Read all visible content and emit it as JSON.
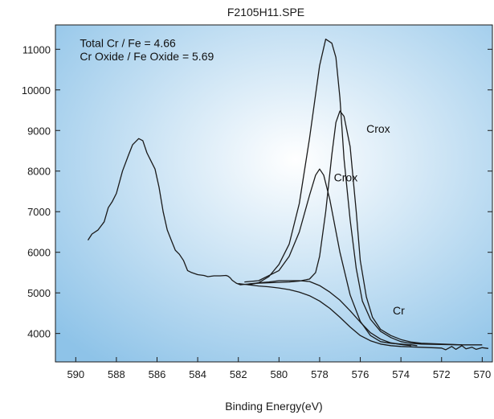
{
  "chart_data": {
    "type": "line",
    "title": "F2105H11.SPE",
    "xlabel": "Binding Energy(eV)",
    "ylabel": "",
    "x_reversed": true,
    "xlim": [
      591,
      569.5
    ],
    "ylim": [
      3300,
      11600
    ],
    "x_ticks": [
      590,
      588,
      586,
      584,
      582,
      580,
      578,
      576,
      574,
      572,
      570
    ],
    "y_ticks": [
      4000,
      5000,
      6000,
      7000,
      8000,
      9000,
      10000,
      11000
    ],
    "background": {
      "gradient": "radial",
      "center_color": "#ffffff",
      "edge_color": "#8ec3e8"
    },
    "annotations": [
      {
        "text": "Total Cr / Fe = 4.66",
        "x": 589.8,
        "y": 11060,
        "anchor": "start"
      },
      {
        "text": "Cr Oxide / Fe Oxide = 5.69",
        "x": 589.8,
        "y": 10730,
        "anchor": "start"
      },
      {
        "text": "Crox",
        "x": 575.7,
        "y": 8950,
        "anchor": "start"
      },
      {
        "text": "Crox",
        "x": 577.3,
        "y": 7750,
        "anchor": "start"
      },
      {
        "text": "Cr",
        "x": 574.4,
        "y": 4470,
        "anchor": "start"
      }
    ],
    "series": [
      {
        "x": [
          589.4,
          589.2,
          588.9,
          588.6,
          588.4,
          588.2,
          588.0,
          587.7,
          587.4,
          587.2,
          586.9,
          586.7,
          586.5,
          586.3,
          586.1,
          585.9,
          585.7,
          585.5,
          585.3,
          585.1,
          584.9,
          584.7,
          584.5,
          584.3,
          584.0,
          583.7,
          583.5,
          583.2,
          582.9,
          582.6,
          582.5,
          582.4,
          582.3,
          582.1,
          581.9,
          581.5,
          581.0,
          580.5,
          580.0,
          579.5,
          579.0,
          578.5,
          578.0,
          577.5,
          577.0,
          576.5,
          576.0,
          575.5,
          575.0,
          574.5,
          574.0,
          573.5
        ],
        "values": [
          6300,
          6450,
          6550,
          6750,
          7100,
          7250,
          7450,
          8000,
          8400,
          8650,
          8800,
          8750,
          8450,
          8250,
          8050,
          7600,
          7000,
          6550,
          6300,
          6050,
          5950,
          5800,
          5550,
          5500,
          5450,
          5430,
          5400,
          5420,
          5420,
          5430,
          5410,
          5370,
          5310,
          5240,
          5200,
          5220,
          5250,
          5270,
          5300,
          5300,
          5300,
          5280,
          5180,
          5020,
          4820,
          4560,
          4280,
          4020,
          3860,
          3770,
          3730,
          3700
        ]
      },
      {
        "x": [
          581.5,
          581.0,
          580.5,
          580.0,
          579.5,
          579.0,
          578.5,
          578.0,
          577.7,
          577.4,
          577.2,
          577.0,
          576.8,
          576.5,
          576.2,
          575.9,
          575.5,
          575.0,
          574.5,
          574.0,
          573.5,
          573.0,
          572.0,
          571.0,
          570.0
        ],
        "values": [
          5200,
          5250,
          5400,
          5700,
          6200,
          7200,
          8800,
          10600,
          11250,
          11150,
          10800,
          9800,
          8300,
          6800,
          5600,
          4800,
          4350,
          4050,
          3900,
          3800,
          3760,
          3740,
          3730,
          3720,
          3720
        ]
      },
      {
        "x": [
          581.7,
          581.0,
          580.0,
          579.5,
          579.0,
          578.5,
          578.2,
          578.0,
          577.8,
          577.5,
          577.0,
          576.5,
          576.0,
          575.5,
          575.0,
          574.5,
          574.0,
          573.5,
          573.2
        ],
        "values": [
          5270,
          5300,
          5550,
          5900,
          6500,
          7400,
          7900,
          8050,
          7900,
          7300,
          6000,
          4950,
          4300,
          3950,
          3800,
          3760,
          3740,
          3720,
          3700
        ]
      },
      {
        "x": [
          581.5,
          581.0,
          580.0,
          579.5,
          579.0,
          578.5,
          578.2,
          578.0,
          577.7,
          577.4,
          577.2,
          577.0,
          576.8,
          576.5,
          576.2,
          576.0,
          575.7,
          575.4,
          575.0,
          574.5,
          574.0,
          573.5,
          573.0,
          572.0,
          571.0
        ],
        "values": [
          5220,
          5240,
          5260,
          5270,
          5290,
          5340,
          5500,
          5900,
          7000,
          8400,
          9200,
          9480,
          9350,
          8600,
          7000,
          5800,
          4900,
          4400,
          4100,
          3950,
          3850,
          3790,
          3760,
          3740,
          3720
        ]
      },
      {
        "x": [
          582.0,
          581.5,
          581.0,
          580.5,
          580.0,
          579.5,
          579.0,
          578.5,
          578.0,
          577.5,
          577.0,
          576.5,
          576.0,
          575.5,
          575.0,
          574.5,
          574.0,
          573.5,
          573.0,
          572.5,
          572.0,
          571.8,
          571.5,
          571.3,
          571.0,
          570.8,
          570.5,
          570.3,
          570.0,
          569.7
        ],
        "values": [
          5230,
          5200,
          5170,
          5150,
          5120,
          5080,
          5020,
          4930,
          4800,
          4620,
          4400,
          4160,
          3950,
          3820,
          3740,
          3700,
          3680,
          3670,
          3660,
          3650,
          3640,
          3600,
          3680,
          3610,
          3700,
          3620,
          3660,
          3610,
          3650,
          3630
        ]
      }
    ]
  }
}
